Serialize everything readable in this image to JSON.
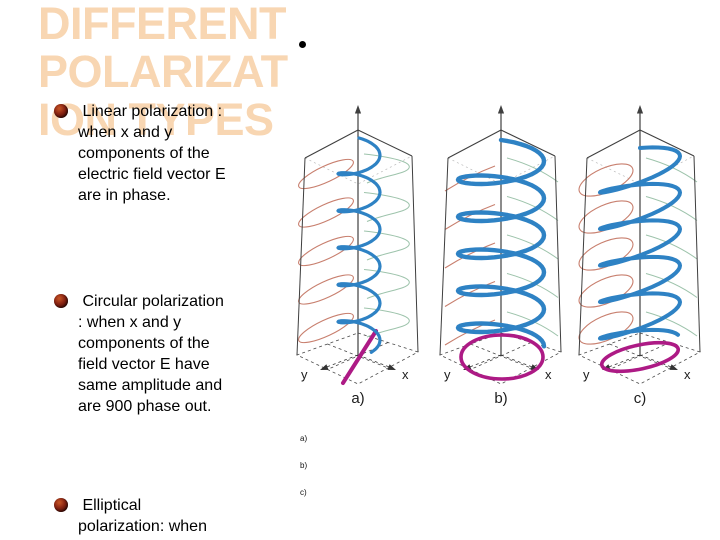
{
  "slide": {
    "title": "DIFFERENT\nPOLARIZAT\nION TYPES",
    "title_color": "#f8d6b2",
    "bullets": [
      {
        "text": " Linear polarization :\nwhen x and y\ncomponents of the\nelectric field vector E\nare in phase."
      },
      {
        "text": " Circular polarization\n: when x and y\ncomponents of the\nfield vector E have\nsame amplitude and\nare 900 phase out."
      },
      {
        "text": " Elliptical\npolarization: when"
      }
    ]
  },
  "figure": {
    "panels": [
      {
        "id": "a",
        "type": "linear",
        "label": "a)",
        "x_label": "x",
        "y_label": "y"
      },
      {
        "id": "b",
        "type": "circular",
        "label": "b)",
        "x_label": "x",
        "y_label": "y"
      },
      {
        "id": "c",
        "type": "elliptical",
        "label": "c)",
        "x_label": "x",
        "y_label": "y"
      }
    ],
    "caption_items": [
      "a)",
      "b)",
      "c)"
    ],
    "colors": {
      "wave": "#2e82c4",
      "x_component": "#9dc3ab",
      "y_component": "#c87f6e",
      "base_trace": "#ad1a85",
      "frame": "#3f3f3f"
    }
  }
}
